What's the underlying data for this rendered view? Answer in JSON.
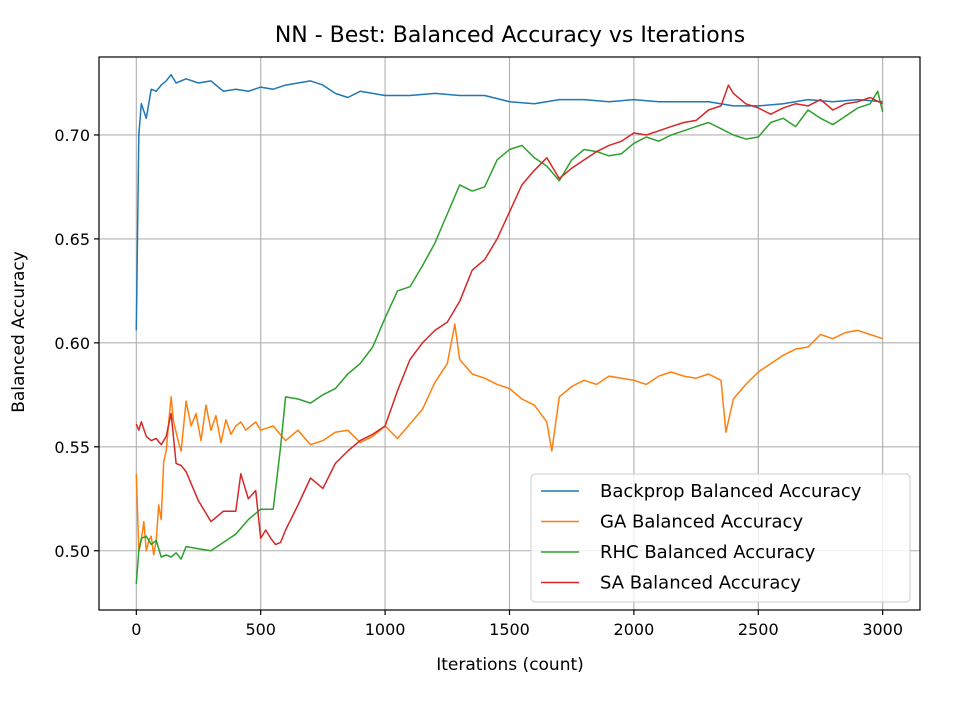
{
  "chart_data": {
    "type": "line",
    "title": "NN - Best: Balanced Accuracy vs Iterations",
    "xlabel": "Iterations (count)",
    "ylabel": "Balanced Accuracy",
    "xlim": [
      -150,
      3150
    ],
    "ylim": [
      0.4715,
      0.7375
    ],
    "xticks": [
      0,
      500,
      1000,
      1500,
      2000,
      2500,
      3000
    ],
    "xtick_labels": [
      "0",
      "500",
      "1000",
      "1500",
      "2000",
      "2500",
      "3000"
    ],
    "yticks": [
      0.5,
      0.55,
      0.6,
      0.65,
      0.7
    ],
    "ytick_labels": [
      "0.50",
      "0.55",
      "0.60",
      "0.65",
      "0.70"
    ],
    "grid": true,
    "legend_position": "lower-right",
    "series": [
      {
        "name": "Backprop Balanced Accuracy",
        "color": "#1f77b4",
        "x": [
          0,
          10,
          20,
          40,
          60,
          80,
          100,
          120,
          140,
          160,
          200,
          250,
          300,
          350,
          400,
          450,
          500,
          550,
          600,
          650,
          700,
          750,
          800,
          850,
          900,
          950,
          1000,
          1100,
          1200,
          1300,
          1400,
          1500,
          1600,
          1700,
          1800,
          1900,
          2000,
          2100,
          2200,
          2300,
          2400,
          2500,
          2600,
          2700,
          2800,
          2900,
          3000
        ],
        "values": [
          0.606,
          0.7,
          0.715,
          0.708,
          0.722,
          0.721,
          0.724,
          0.726,
          0.729,
          0.725,
          0.727,
          0.725,
          0.726,
          0.721,
          0.722,
          0.721,
          0.723,
          0.722,
          0.724,
          0.725,
          0.726,
          0.724,
          0.72,
          0.718,
          0.721,
          0.72,
          0.719,
          0.719,
          0.72,
          0.719,
          0.719,
          0.716,
          0.715,
          0.717,
          0.717,
          0.716,
          0.717,
          0.716,
          0.716,
          0.716,
          0.714,
          0.714,
          0.715,
          0.717,
          0.716,
          0.717,
          0.716
        ]
      },
      {
        "name": "GA Balanced Accuracy",
        "color": "#ff7f0e",
        "x": [
          0,
          10,
          20,
          30,
          40,
          50,
          60,
          70,
          80,
          90,
          100,
          110,
          120,
          130,
          140,
          150,
          160,
          170,
          180,
          190,
          200,
          220,
          240,
          260,
          280,
          300,
          320,
          340,
          360,
          380,
          400,
          420,
          440,
          460,
          480,
          500,
          550,
          600,
          650,
          700,
          750,
          800,
          850,
          900,
          950,
          1000,
          1050,
          1100,
          1150,
          1200,
          1250,
          1280,
          1300,
          1350,
          1400,
          1450,
          1500,
          1550,
          1600,
          1650,
          1670,
          1700,
          1750,
          1800,
          1850,
          1900,
          1950,
          2000,
          2050,
          2100,
          2150,
          2200,
          2250,
          2300,
          2350,
          2370,
          2400,
          2450,
          2500,
          2550,
          2600,
          2650,
          2700,
          2750,
          2800,
          2850,
          2900,
          2950,
          3000
        ],
        "values": [
          0.537,
          0.5,
          0.505,
          0.514,
          0.5,
          0.505,
          0.507,
          0.498,
          0.505,
          0.522,
          0.515,
          0.543,
          0.548,
          0.562,
          0.574,
          0.562,
          0.557,
          0.552,
          0.548,
          0.56,
          0.572,
          0.56,
          0.566,
          0.553,
          0.57,
          0.558,
          0.565,
          0.552,
          0.563,
          0.556,
          0.56,
          0.562,
          0.558,
          0.56,
          0.562,
          0.558,
          0.56,
          0.553,
          0.558,
          0.551,
          0.553,
          0.557,
          0.558,
          0.552,
          0.555,
          0.56,
          0.554,
          0.561,
          0.568,
          0.581,
          0.59,
          0.609,
          0.592,
          0.585,
          0.583,
          0.58,
          0.578,
          0.573,
          0.57,
          0.562,
          0.548,
          0.574,
          0.579,
          0.582,
          0.58,
          0.584,
          0.583,
          0.582,
          0.58,
          0.584,
          0.586,
          0.584,
          0.583,
          0.585,
          0.582,
          0.557,
          0.573,
          0.58,
          0.586,
          0.59,
          0.594,
          0.597,
          0.598,
          0.604,
          0.602,
          0.605,
          0.606,
          0.604,
          0.602
        ]
      },
      {
        "name": "RHC Balanced Accuracy",
        "color": "#2ca02c",
        "x": [
          0,
          10,
          20,
          40,
          60,
          80,
          100,
          120,
          140,
          160,
          180,
          200,
          250,
          300,
          350,
          400,
          450,
          500,
          550,
          580,
          600,
          650,
          700,
          750,
          800,
          850,
          900,
          950,
          1000,
          1050,
          1100,
          1150,
          1200,
          1250,
          1300,
          1350,
          1400,
          1450,
          1500,
          1550,
          1600,
          1650,
          1700,
          1750,
          1800,
          1850,
          1900,
          1950,
          2000,
          2050,
          2100,
          2150,
          2200,
          2250,
          2300,
          2350,
          2400,
          2450,
          2500,
          2550,
          2600,
          2650,
          2700,
          2750,
          2800,
          2850,
          2900,
          2950,
          2980,
          3000
        ],
        "values": [
          0.484,
          0.5,
          0.506,
          0.507,
          0.503,
          0.505,
          0.497,
          0.498,
          0.497,
          0.499,
          0.496,
          0.502,
          0.501,
          0.5,
          0.504,
          0.508,
          0.515,
          0.52,
          0.52,
          0.55,
          0.574,
          0.573,
          0.571,
          0.575,
          0.578,
          0.585,
          0.59,
          0.598,
          0.612,
          0.625,
          0.627,
          0.637,
          0.648,
          0.662,
          0.676,
          0.673,
          0.675,
          0.688,
          0.693,
          0.695,
          0.689,
          0.685,
          0.678,
          0.688,
          0.693,
          0.692,
          0.69,
          0.691,
          0.696,
          0.699,
          0.697,
          0.7,
          0.702,
          0.704,
          0.706,
          0.703,
          0.7,
          0.698,
          0.699,
          0.706,
          0.708,
          0.704,
          0.712,
          0.708,
          0.705,
          0.709,
          0.713,
          0.715,
          0.721,
          0.711
        ]
      },
      {
        "name": "SA Balanced Accuracy",
        "color": "#d62728",
        "x": [
          0,
          10,
          20,
          40,
          60,
          80,
          100,
          120,
          140,
          160,
          180,
          200,
          250,
          300,
          350,
          400,
          420,
          450,
          480,
          500,
          520,
          540,
          560,
          580,
          600,
          650,
          700,
          750,
          800,
          850,
          900,
          950,
          1000,
          1050,
          1100,
          1150,
          1200,
          1250,
          1300,
          1350,
          1400,
          1450,
          1500,
          1550,
          1600,
          1650,
          1700,
          1750,
          1800,
          1850,
          1900,
          1950,
          2000,
          2050,
          2100,
          2150,
          2200,
          2250,
          2300,
          2350,
          2380,
          2400,
          2450,
          2500,
          2550,
          2600,
          2650,
          2700,
          2750,
          2800,
          2850,
          2900,
          2950,
          3000
        ],
        "values": [
          0.561,
          0.558,
          0.562,
          0.555,
          0.553,
          0.554,
          0.551,
          0.555,
          0.566,
          0.542,
          0.541,
          0.538,
          0.524,
          0.514,
          0.519,
          0.519,
          0.537,
          0.525,
          0.529,
          0.506,
          0.51,
          0.506,
          0.503,
          0.504,
          0.51,
          0.522,
          0.535,
          0.53,
          0.542,
          0.548,
          0.553,
          0.556,
          0.56,
          0.577,
          0.592,
          0.6,
          0.606,
          0.61,
          0.62,
          0.635,
          0.64,
          0.65,
          0.663,
          0.676,
          0.683,
          0.689,
          0.679,
          0.684,
          0.688,
          0.692,
          0.695,
          0.697,
          0.701,
          0.7,
          0.702,
          0.704,
          0.706,
          0.707,
          0.712,
          0.714,
          0.724,
          0.72,
          0.715,
          0.713,
          0.71,
          0.713,
          0.715,
          0.714,
          0.717,
          0.712,
          0.715,
          0.716,
          0.718,
          0.715
        ]
      }
    ]
  }
}
